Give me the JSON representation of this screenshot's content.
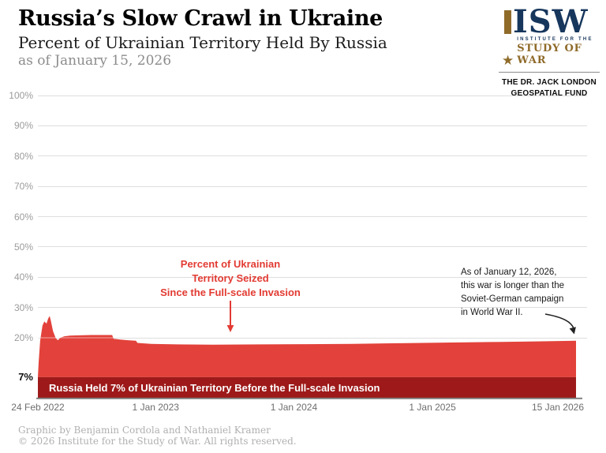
{
  "header": {
    "title": "Russia’s Slow Crawl in Ukraine",
    "subtitle": "Percent of Ukrainian Territory Held By Russia",
    "as_of": "as of January 15, 2026"
  },
  "logo": {
    "wordmark": "ISW",
    "star": "★",
    "institute_line": "INSTITUTE FOR THE",
    "study_line": "STUDY OF WAR",
    "fund_line1": "THE DR. JACK LONDON",
    "fund_line2": "GEOSPATIAL FUND"
  },
  "chart_data": {
    "type": "area",
    "title": "Russia’s Slow Crawl in Ukraine",
    "subtitle": "Percent of Ukrainian Territory Held By Russia",
    "as_of_date": "January 15, 2026",
    "ylabel": "Percent of Ukrainian territory held by Russia",
    "ylim": [
      0,
      100
    ],
    "grid": true,
    "y_ticks": [
      {
        "label": "100%",
        "value": 100
      },
      {
        "label": "90%",
        "value": 90
      },
      {
        "label": "80%",
        "value": 80
      },
      {
        "label": "70%",
        "value": 70
      },
      {
        "label": "60%",
        "value": 60
      },
      {
        "label": "50%",
        "value": 50
      },
      {
        "label": "40%",
        "value": 40
      },
      {
        "label": "30%",
        "value": 30
      },
      {
        "label": "20%",
        "value": 20
      },
      {
        "label": "7%",
        "value": 7,
        "emphasis": true
      }
    ],
    "x_ticks": [
      {
        "label": "24 Feb 2022",
        "date": "2022-02-24"
      },
      {
        "label": "1 Jan 2023",
        "date": "2023-01-01"
      },
      {
        "label": "1 Jan 2024",
        "date": "2024-01-01"
      },
      {
        "label": "1 Jan 2025",
        "date": "2025-01-01"
      },
      {
        "label": "15 Jan 2026",
        "date": "2026-01-15"
      }
    ],
    "baseline": {
      "value": 7,
      "label": "Russia Held 7% of Ukrainian Territory Before the Full-scale Invasion"
    },
    "series": [
      {
        "name": "Percent of Ukrainian territory held by Russia",
        "points": [
          [
            "2022-02-24",
            7.0
          ],
          [
            "2022-02-26",
            12.0
          ],
          [
            "2022-03-02",
            19.0
          ],
          [
            "2022-03-08",
            24.0
          ],
          [
            "2022-03-13",
            25.4
          ],
          [
            "2022-03-16",
            25.0
          ],
          [
            "2022-03-19",
            24.7
          ],
          [
            "2022-03-23",
            26.3
          ],
          [
            "2022-03-27",
            27.2
          ],
          [
            "2022-03-30",
            25.8
          ],
          [
            "2022-04-05",
            22.2
          ],
          [
            "2022-04-12",
            19.9
          ],
          [
            "2022-04-18",
            19.2
          ],
          [
            "2022-04-24",
            20.0
          ],
          [
            "2022-05-05",
            20.5
          ],
          [
            "2022-05-20",
            20.7
          ],
          [
            "2022-06-15",
            20.8
          ],
          [
            "2022-07-15",
            20.9
          ],
          [
            "2022-08-25",
            20.9
          ],
          [
            "2022-09-08",
            20.9
          ],
          [
            "2022-09-12",
            19.7
          ],
          [
            "2022-09-30",
            19.4
          ],
          [
            "2022-10-20",
            19.2
          ],
          [
            "2022-11-10",
            19.0
          ],
          [
            "2022-11-14",
            18.3
          ],
          [
            "2022-12-20",
            18.0
          ],
          [
            "2023-03-01",
            17.8
          ],
          [
            "2023-06-01",
            17.7
          ],
          [
            "2023-10-01",
            17.8
          ],
          [
            "2024-02-01",
            17.9
          ],
          [
            "2024-06-01",
            18.0
          ],
          [
            "2024-10-01",
            18.2
          ],
          [
            "2025-02-01",
            18.4
          ],
          [
            "2025-06-01",
            18.6
          ],
          [
            "2025-10-01",
            18.8
          ],
          [
            "2026-01-15",
            19.0
          ]
        ]
      }
    ],
    "annotations": [
      {
        "id": "seized",
        "text": "Percent of Ukrainian\nTerritory Seized\nSince the Full-scale Invasion",
        "color": "#E23B33"
      },
      {
        "id": "ww2",
        "text": "As of January 12, 2026,\nthis war is longer than the\nSoviet-German campaign\nin World War II.",
        "color": "#191919"
      }
    ],
    "colors": {
      "area": "#E2423B",
      "band": "#9E1A1A",
      "annotation_red": "#E23B33",
      "grid": "#DEDEDE",
      "axis": "#7A7A7A",
      "logo_navy": "#16365C",
      "logo_gold": "#8F6B2A"
    }
  },
  "footer": {
    "credit": "Graphic by Benjamin Cordola and Nathaniel Kramer",
    "copyright": "© 2026 Institute for the Study of War. All rights reserved."
  }
}
